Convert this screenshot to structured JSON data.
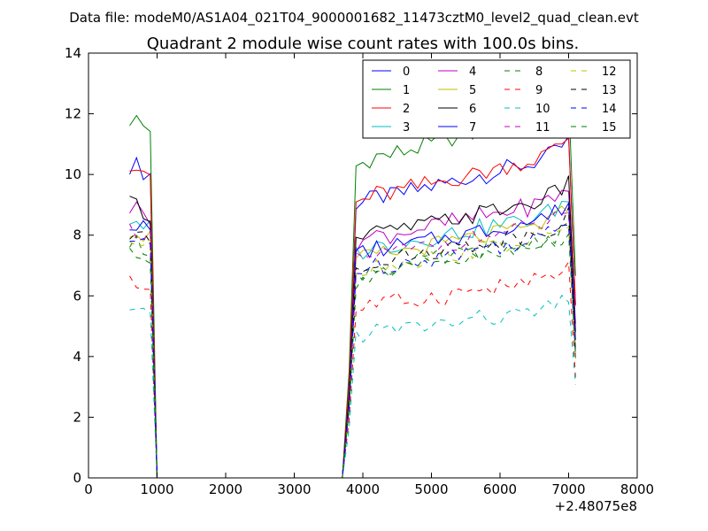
{
  "chart_data": {
    "type": "line",
    "suptitle": "Data file: modeM0/AS1A04_021T04_9000001682_11473cztM0_level2_quad_clean.evt",
    "title": "Quadrant 2 module wise count rates with 100.0s bins.",
    "xlabel": "",
    "ylabel": "",
    "x_offset_label": "+2.48075e8",
    "xlim": [
      0,
      8000
    ],
    "ylim": [
      0,
      14
    ],
    "xticks": [
      0,
      1000,
      2000,
      3000,
      4000,
      5000,
      6000,
      7000,
      8000
    ],
    "yticks": [
      0,
      2,
      4,
      6,
      8,
      10,
      12,
      14
    ],
    "grid": false,
    "legend_position": "top-right",
    "legend_columns": 4,
    "series": [
      {
        "name": "0",
        "color": "#0000ff",
        "dash": "solid"
      },
      {
        "name": "1",
        "color": "#008000",
        "dash": "solid"
      },
      {
        "name": "2",
        "color": "#ff0000",
        "dash": "solid"
      },
      {
        "name": "3",
        "color": "#00bfbf",
        "dash": "solid"
      },
      {
        "name": "4",
        "color": "#bf00bf",
        "dash": "solid"
      },
      {
        "name": "5",
        "color": "#bfbf00",
        "dash": "solid"
      },
      {
        "name": "6",
        "color": "#000000",
        "dash": "solid"
      },
      {
        "name": "7",
        "color": "#0000ff",
        "dash": "solid"
      },
      {
        "name": "8",
        "color": "#008000",
        "dash": "dashed"
      },
      {
        "name": "9",
        "color": "#ff0000",
        "dash": "dashed"
      },
      {
        "name": "10",
        "color": "#00bfbf",
        "dash": "dashed"
      },
      {
        "name": "11",
        "color": "#bf00bf",
        "dash": "dashed"
      },
      {
        "name": "12",
        "color": "#bfbf00",
        "dash": "dashed"
      },
      {
        "name": "13",
        "color": "#000000",
        "dash": "dashed"
      },
      {
        "name": "14",
        "color": "#0000ff",
        "dash": "dashed"
      },
      {
        "name": "15",
        "color": "#008000",
        "dash": "dashed"
      }
    ],
    "x": [
      600,
      700,
      800,
      900,
      1000,
      1100,
      3700,
      3800,
      3900,
      4000,
      4100,
      4200,
      4300,
      4400,
      4500,
      4600,
      4700,
      4800,
      4900,
      5000,
      5100,
      5200,
      5300,
      5400,
      5500,
      5600,
      5700,
      5800,
      5900,
      6000,
      6100,
      6200,
      6300,
      6400,
      6500,
      6600,
      6700,
      6800,
      6900,
      7000,
      7100
    ],
    "base_levels": [
      10.3,
      11.8,
      10.4,
      8.5,
      8.9,
      8.2,
      9.0,
      8.4,
      7.7,
      6.4,
      5.4,
      8.2,
      7.8,
      8.0,
      7.8,
      7.5
    ],
    "series_values": {
      "shape": [
        1.0,
        1.0,
        0.98,
        0.97,
        0.0,
        0.0,
        0.0,
        0.3,
        0.87,
        0.88,
        0.89,
        0.9,
        0.9,
        0.9,
        0.91,
        0.91,
        0.92,
        0.92,
        0.93,
        0.93,
        0.94,
        0.94,
        0.95,
        0.95,
        0.96,
        0.96,
        0.97,
        0.97,
        0.98,
        0.98,
        0.99,
        0.99,
        1.0,
        1.0,
        1.01,
        1.02,
        1.03,
        1.04,
        1.06,
        1.08,
        0.55
      ]
    }
  }
}
